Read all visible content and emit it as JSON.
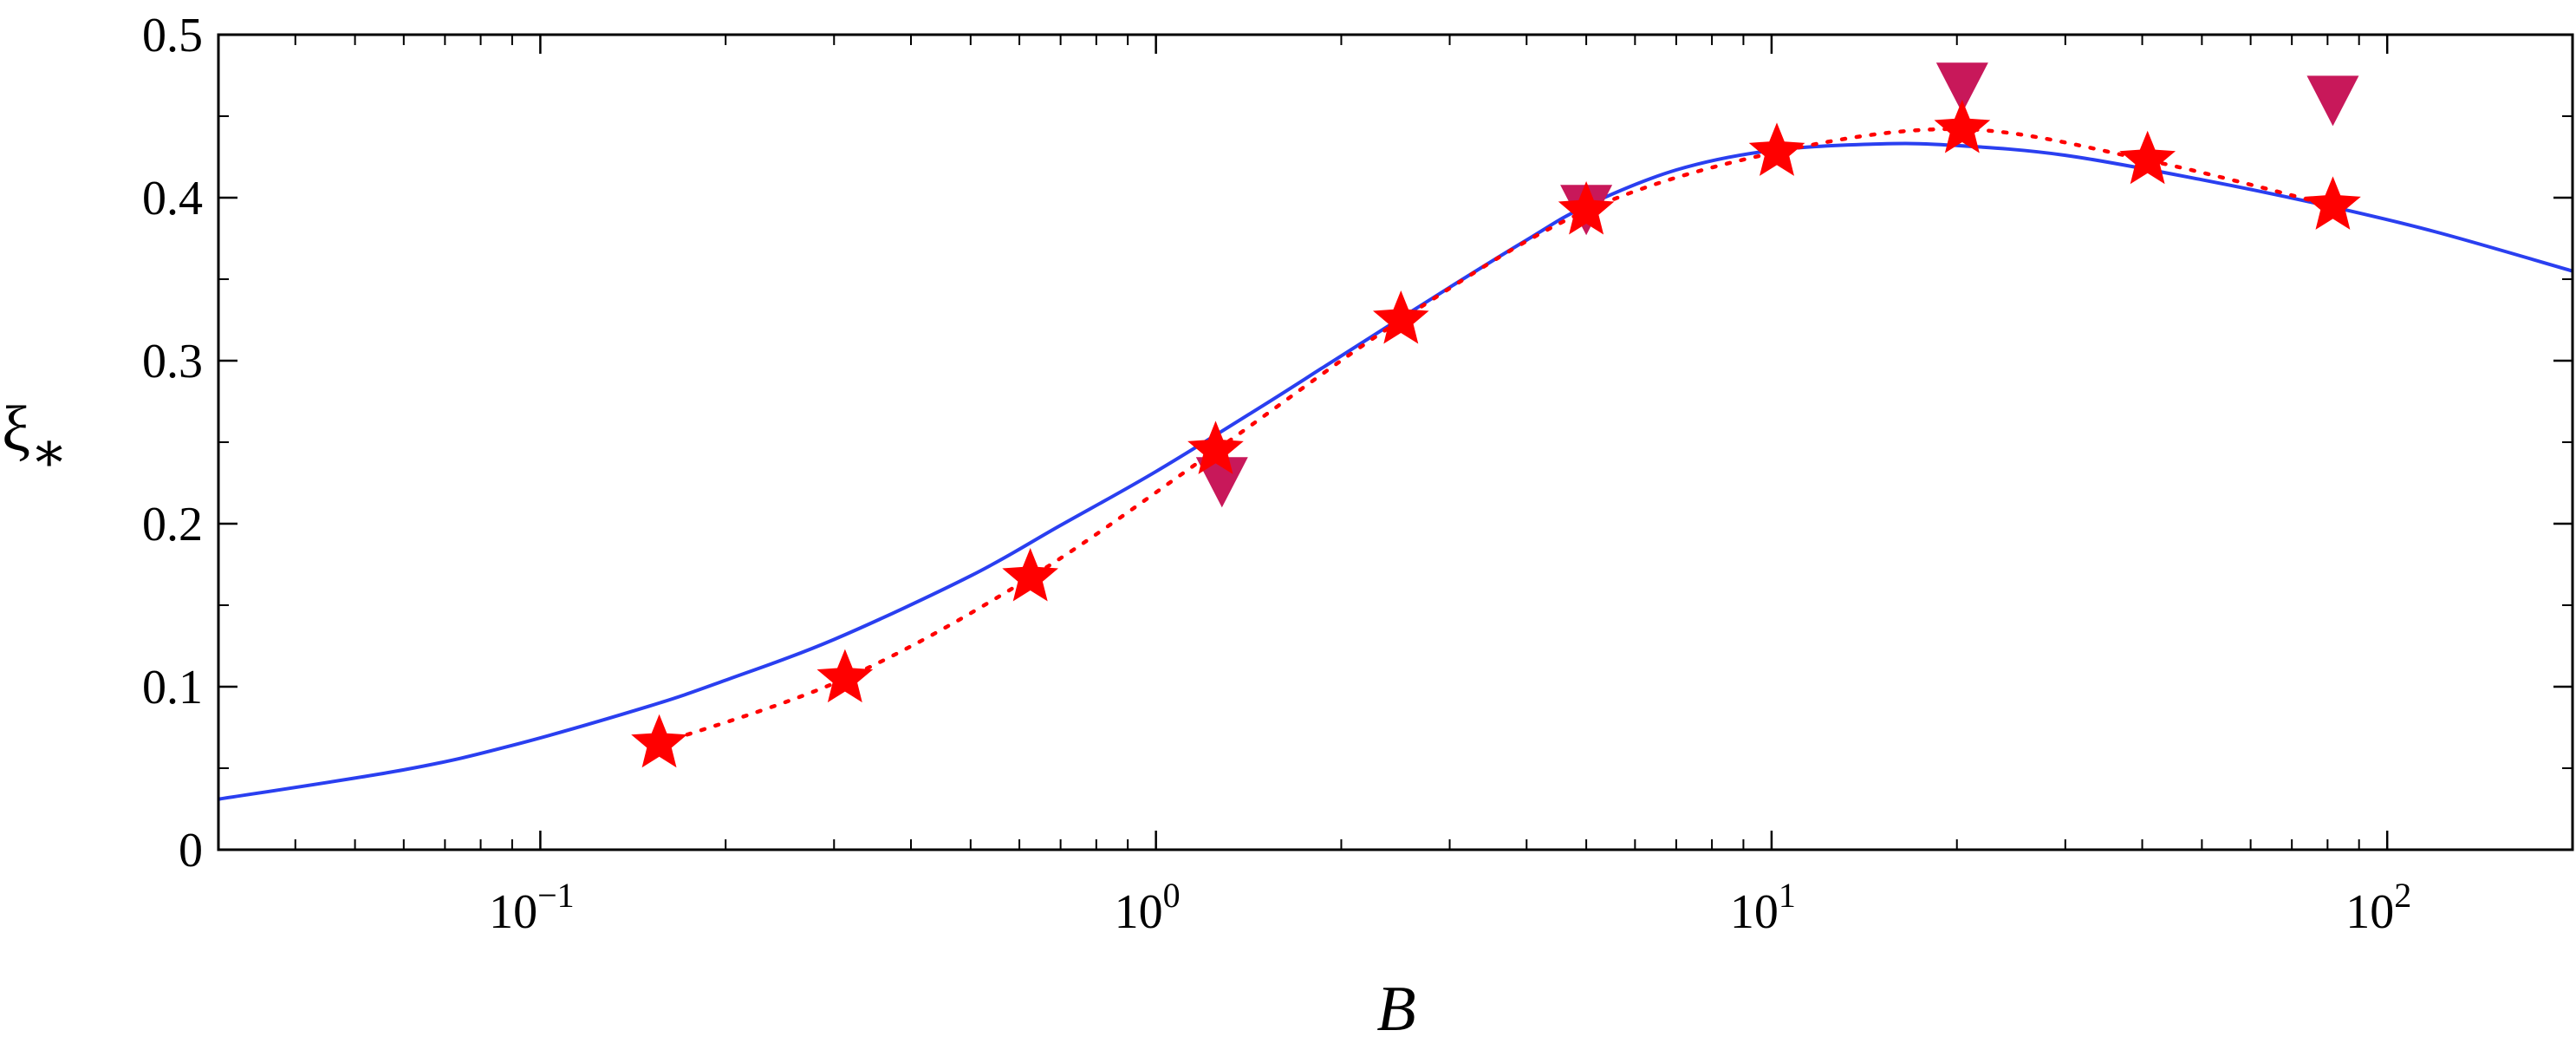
{
  "chart_data": {
    "type": "scatter",
    "xlabel": "B",
    "ylabel": "ξ",
    "ylabel_sub": "∗",
    "xscale": "log",
    "xlim": [
      0.03,
      200
    ],
    "ylim": [
      0,
      0.5
    ],
    "yticks": [
      0,
      0.1,
      0.2,
      0.3,
      0.4,
      0.5
    ],
    "ytick_labels": [
      "0",
      "0.1",
      "0.2",
      "0.3",
      "0.4",
      "0.5"
    ],
    "xticks": [
      0.1,
      1,
      10,
      100
    ],
    "xtick_labels": [
      {
        "base": "10",
        "exp": "−1"
      },
      {
        "base": "10",
        "exp": "0"
      },
      {
        "base": "10",
        "exp": "1"
      },
      {
        "base": "10",
        "exp": "2"
      }
    ],
    "grid": false,
    "series": [
      {
        "style": "solid-line",
        "color": "#2a3ff0",
        "x": [
          0.03,
          0.06,
          0.09,
          0.15,
          0.2,
          0.3,
          0.5,
          0.7,
          1.0,
          1.5,
          2.0,
          3.0,
          4.0,
          5.0,
          7.0,
          10.0,
          15.0,
          20.0,
          30.0,
          50.0,
          80.0,
          120.0,
          200.0
        ],
        "y": [
          0.031,
          0.049,
          0.064,
          0.088,
          0.104,
          0.129,
          0.168,
          0.199,
          0.232,
          0.273,
          0.303,
          0.345,
          0.374,
          0.395,
          0.417,
          0.429,
          0.433,
          0.432,
          0.426,
          0.411,
          0.395,
          0.379,
          0.355
        ]
      },
      {
        "style": "dotted-line-stars",
        "color": "#ff0000",
        "x": [
          0.156,
          0.3125,
          0.625,
          1.25,
          2.5,
          5.0,
          10.2,
          20.4,
          40.8,
          81.6
        ],
        "y": [
          0.065,
          0.105,
          0.167,
          0.245,
          0.325,
          0.392,
          0.428,
          0.442,
          0.423,
          0.395
        ]
      },
      {
        "style": "triangles-down",
        "color": "#c8185a",
        "x": [
          1.28,
          5.0,
          20.4,
          81.6
        ],
        "y": [
          0.227,
          0.394,
          0.469,
          0.461
        ]
      }
    ]
  }
}
